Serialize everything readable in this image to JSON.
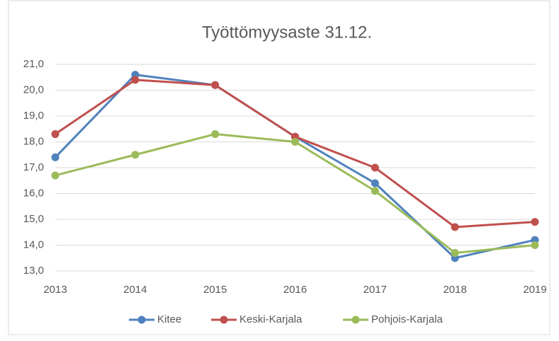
{
  "chart_data": {
    "type": "line",
    "title": "Työttömyysaste 31.12.",
    "x": [
      2013,
      2014,
      2015,
      2016,
      2017,
      2018,
      2019
    ],
    "xlim": [
      2013,
      2019
    ],
    "xticks": [
      2013,
      2014,
      2015,
      2016,
      2017,
      2018,
      2019
    ],
    "ylim": [
      13,
      21
    ],
    "yticks": [
      {
        "value": 13,
        "label": "13,0"
      },
      {
        "value": 14,
        "label": "14,0"
      },
      {
        "value": 15,
        "label": "15,0"
      },
      {
        "value": 16,
        "label": "16,0"
      },
      {
        "value": 17,
        "label": "17,0"
      },
      {
        "value": 18,
        "label": "18,0"
      },
      {
        "value": 19,
        "label": "19,0"
      },
      {
        "value": 20,
        "label": "20,0"
      },
      {
        "value": 21,
        "label": "21,0"
      }
    ],
    "grid": true,
    "legend": "bottom",
    "series": [
      {
        "name": "Kitee",
        "color": "#4f81bd",
        "values": [
          17.4,
          20.6,
          20.2,
          18.2,
          16.4,
          13.5,
          14.2
        ]
      },
      {
        "name": "Keski-Karjala",
        "color": "#c0504d",
        "values": [
          18.3,
          20.4,
          20.2,
          18.2,
          17.0,
          14.7,
          14.9
        ]
      },
      {
        "name": "Pohjois-Karjala",
        "color": "#9bbb59",
        "values": [
          16.7,
          17.5,
          18.3,
          18.0,
          16.1,
          13.7,
          14.0
        ]
      }
    ]
  }
}
